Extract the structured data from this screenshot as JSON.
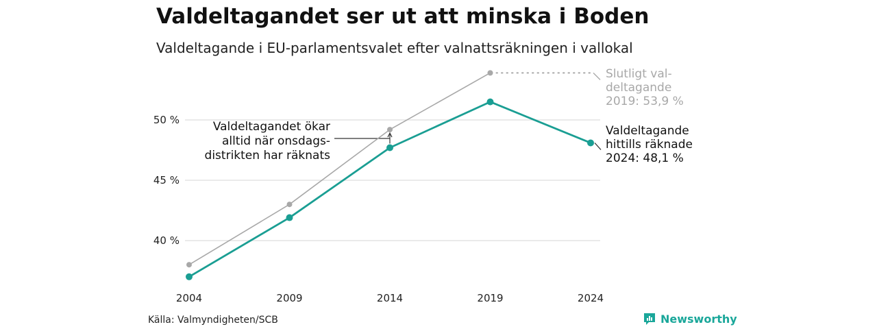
{
  "title": "Valdeltagandet ser ut att minska i Boden",
  "subtitle": "Valdeltagande i EU-parlamentsvalet efter valnattsräkningen i vallokal",
  "source": "Källa: Valmyndigheten/SCB",
  "brand": "Newsworthy",
  "colors": {
    "final": "#a8a8a8",
    "counted": "#1a9e93",
    "grid": "#e4e4e4",
    "brand": "#1aa79a"
  },
  "chart_data": {
    "type": "line",
    "x": [
      2004,
      2009,
      2014,
      2019,
      2024
    ],
    "xticks": [
      "2004",
      "2009",
      "2014",
      "2019",
      "2024"
    ],
    "yticks": [
      {
        "value": 40,
        "label": "40 %"
      },
      {
        "value": 45,
        "label": "45 %"
      },
      {
        "value": 50,
        "label": "50 %"
      }
    ],
    "ylim": [
      36,
      54.5
    ],
    "grid": true,
    "series": [
      {
        "key": "final",
        "values": [
          38.0,
          43.0,
          49.2,
          53.9,
          null
        ]
      },
      {
        "key": "counted",
        "values": [
          37.0,
          41.9,
          47.7,
          51.5,
          48.1
        ]
      }
    ],
    "annotations": {
      "final_label": [
        "Slutligt val-",
        "deltagande",
        "2019: 53,9 %"
      ],
      "counted_label": [
        "Valdeltagande",
        "hittills räknade",
        "2024: 48,1 %"
      ],
      "note": [
        "Valdeltagandet ökar",
        "alltid när onsdags-",
        "distrikten har räknats"
      ]
    }
  }
}
